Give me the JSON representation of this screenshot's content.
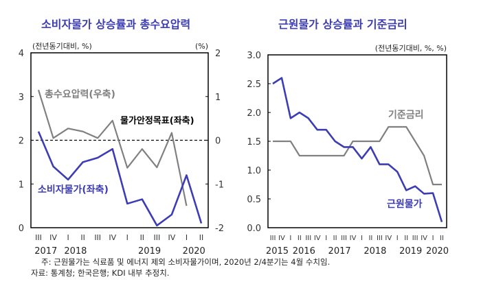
{
  "chart_data": [
    {
      "type": "line",
      "title": "소비자물가 상승률과 총수요압력",
      "unit_left": "(전년동기대비, %)",
      "unit_right": "(%)",
      "categories": [
        "III",
        "IV",
        "I",
        "II",
        "III",
        "IV",
        "I",
        "II",
        "III",
        "IV",
        "I",
        "II"
      ],
      "year_labels": [
        {
          "label": "2017",
          "at": 0.5
        },
        {
          "label": "2018",
          "at": 2.5
        },
        {
          "label": "2019",
          "at": 7.5
        },
        {
          "label": "2020",
          "at": 10.5
        }
      ],
      "ylim": [
        0,
        4
      ],
      "yticks": [
        "0",
        "1",
        "2",
        "3",
        "4"
      ],
      "y2lim": [
        -2,
        2
      ],
      "y2ticks": [
        "-2",
        "-1",
        "0",
        "1",
        "2"
      ],
      "series": [
        {
          "name": "소비자물가(좌축)",
          "axis": "left",
          "color": "#3c3cb4",
          "values": [
            2.2,
            1.4,
            1.1,
            1.5,
            1.6,
            1.8,
            0.55,
            0.65,
            0.05,
            0.3,
            1.2,
            0.1
          ]
        },
        {
          "name": "총수요압력(우축)",
          "axis": "right",
          "color": "#808080",
          "values": [
            1.15,
            0.05,
            0.27,
            0.2,
            0.05,
            0.45,
            -0.63,
            -0.2,
            -0.62,
            0.17,
            -1.5,
            null
          ]
        }
      ],
      "reference_line": {
        "name": "물가안정목표(좌축)",
        "value": 2,
        "style": "dashed"
      },
      "grid": false
    },
    {
      "type": "line",
      "title": "근원물가 상승률과 기준금리",
      "unit_left": "(전년동기대비, %, %)",
      "categories": [
        "III",
        "IV",
        "I",
        "II",
        "III",
        "IV",
        "I",
        "II",
        "III",
        "IV",
        "I",
        "II",
        "III",
        "IV",
        "I",
        "II",
        "III",
        "IV",
        "I",
        "II"
      ],
      "year_labels": [
        {
          "label": "2015",
          "at": 0.5
        },
        {
          "label": "2016",
          "at": 3.5
        },
        {
          "label": "2017",
          "at": 7.5
        },
        {
          "label": "2018",
          "at": 11.5
        },
        {
          "label": "2019",
          "at": 15.5
        },
        {
          "label": "2020",
          "at": 18.5
        }
      ],
      "ylim": [
        0,
        3
      ],
      "yticks": [
        "0.0",
        "0.5",
        "1.0",
        "1.5",
        "2.0",
        "2.5",
        "3.0"
      ],
      "series": [
        {
          "name": "근원물가",
          "color": "#3c3cb4",
          "values": [
            2.5,
            2.6,
            1.9,
            2.0,
            1.9,
            1.7,
            1.7,
            1.5,
            1.4,
            1.4,
            1.2,
            1.4,
            1.1,
            1.1,
            0.97,
            0.65,
            0.72,
            0.59,
            0.6,
            0.1
          ]
        },
        {
          "name": "기준금리",
          "color": "#808080",
          "values": [
            1.5,
            1.5,
            1.5,
            1.25,
            1.25,
            1.25,
            1.25,
            1.25,
            1.25,
            1.5,
            1.5,
            1.5,
            1.5,
            1.75,
            1.75,
            1.75,
            1.5,
            1.25,
            0.75,
            0.75
          ]
        }
      ],
      "grid": false
    }
  ],
  "notes": {
    "note": "주: 근원물가는 식료품 및 에너지 제외 소비자물가이며, 2020년 2/4분기는 4월 수치임.",
    "source": "자료: 통계청; 한국은행; KDI 내부 추정치."
  }
}
